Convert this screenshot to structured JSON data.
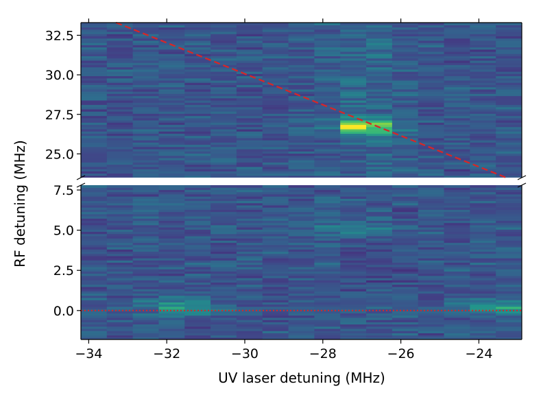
{
  "chart_data": {
    "type": "heatmap",
    "title": "",
    "xlabel": "UV laser detuning (MHz)",
    "ylabel": "RF detuning (MHz)",
    "xlim": [
      -34.2,
      -22.9
    ],
    "broken_y_axis": true,
    "panels": [
      {
        "name": "upper",
        "ylim": [
          23.5,
          33.3
        ],
        "yticks": [
          25.0,
          27.5,
          30.0,
          32.5
        ],
        "ytick_labels": [
          "25.0",
          "27.5",
          "30.0",
          "32.5"
        ],
        "peak": {
          "x": -26.9,
          "y": 26.7
        },
        "overlay_line": {
          "style": "dashed",
          "color": "#d62728",
          "points": [
            [
              -33.3,
              33.3
            ],
            [
              -23.3,
              23.5
            ]
          ]
        }
      },
      {
        "name": "lower",
        "ylim": [
          -1.8,
          7.8
        ],
        "yticks": [
          0.0,
          2.5,
          5.0,
          7.5
        ],
        "ytick_labels": [
          "0.0",
          "2.5",
          "5.0",
          "7.5"
        ],
        "bright_regions": [
          {
            "x": -31.6,
            "y": 0.2
          },
          {
            "x": -23.4,
            "y": 0.2
          },
          {
            "x": -27.2,
            "y": 5.2
          }
        ],
        "overlay_line": {
          "style": "dotted",
          "color": "#d62728",
          "points": [
            [
              -34.2,
              0.0
            ],
            [
              -22.9,
              0.0
            ]
          ]
        }
      }
    ],
    "xticks": [
      -34,
      -32,
      -30,
      -28,
      -26,
      -24
    ],
    "xtick_labels": [
      "−34",
      "−32",
      "−30",
      "−28",
      "−26",
      "−24"
    ],
    "colormap": "viridis"
  }
}
